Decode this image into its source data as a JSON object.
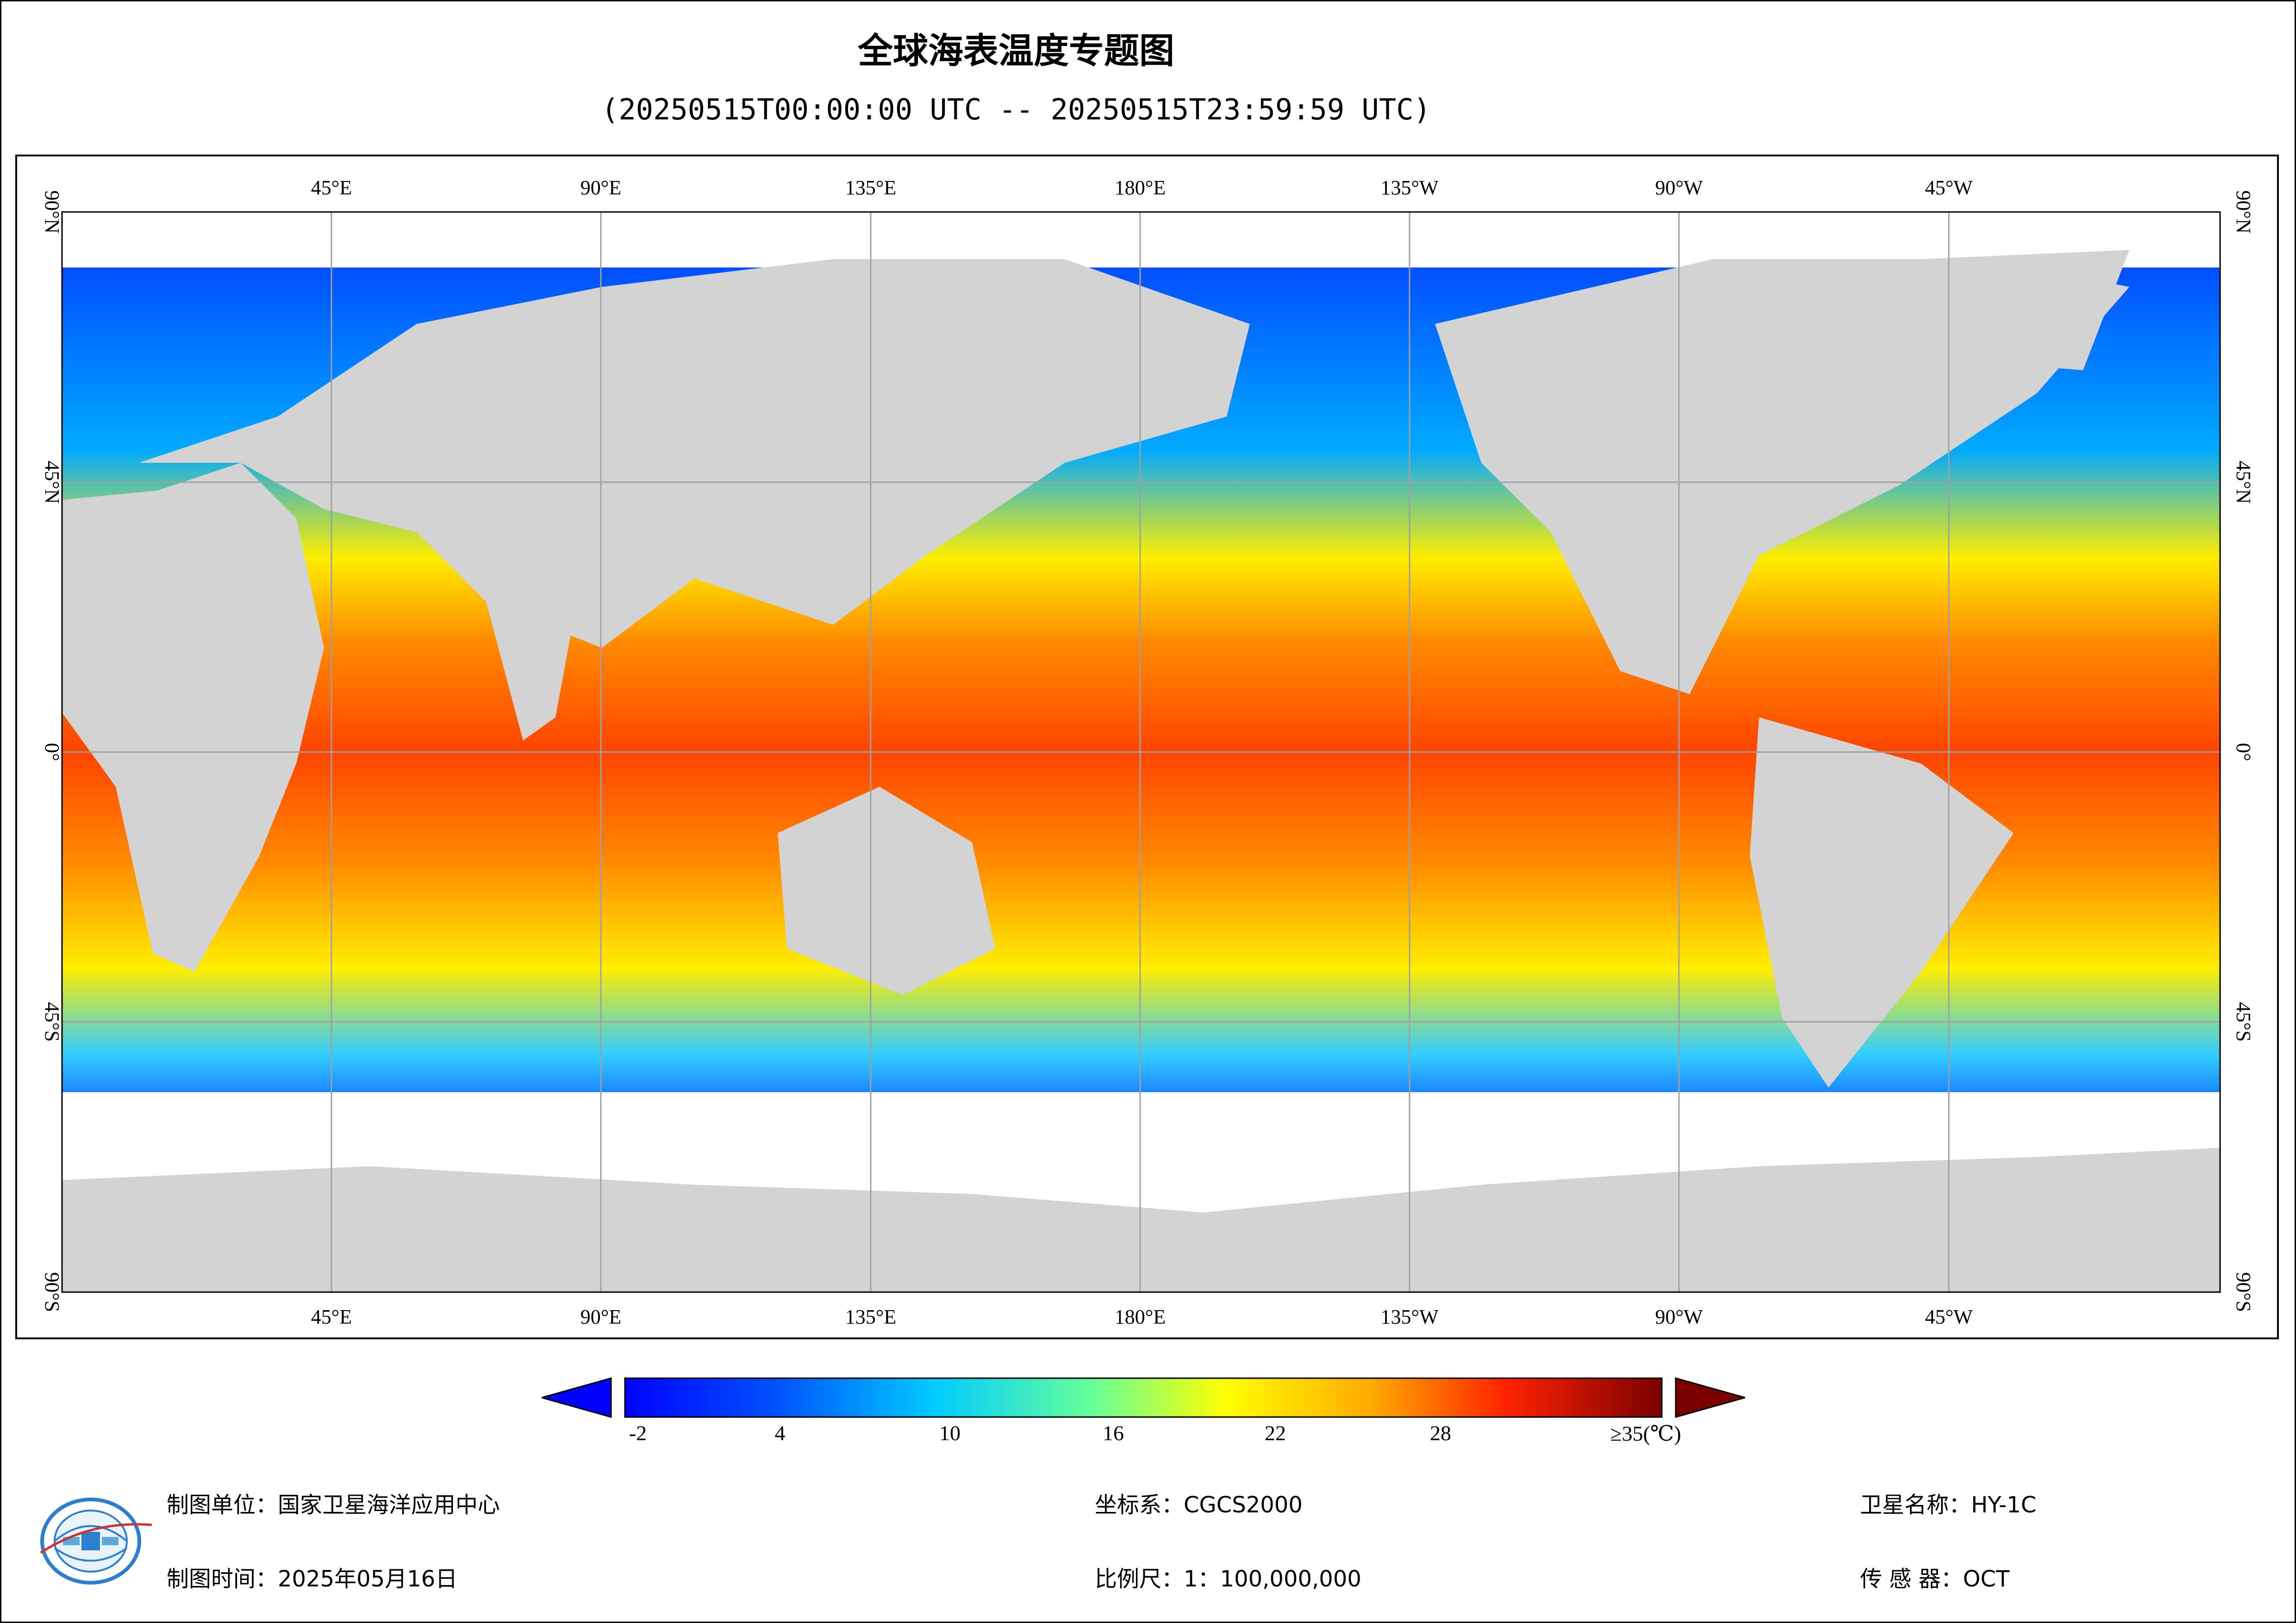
{
  "title": "全球海表温度专题图",
  "subtitle": "(20250515T00:00:00 UTC -- 20250515T23:59:59 UTC)",
  "map": {
    "top_lon_labels": [
      "45°E",
      "90°E",
      "135°E",
      "180°E",
      "135°W",
      "90°W",
      "45°W"
    ],
    "bottom_lon_labels": [
      "45°E",
      "90°E",
      "135°E",
      "180°E",
      "135°W",
      "90°W",
      "45°W"
    ],
    "lat_labels": [
      "90°N",
      "45°N",
      "0°",
      "45°S",
      "90°S"
    ],
    "colors": {
      "land": "#d3d3d3",
      "cloud": "#ffffff",
      "grid": "#a0a0a0"
    }
  },
  "colorbar": {
    "ticks": [
      "-2",
      "4",
      "10",
      "16",
      "22",
      "28",
      "≥35(℃)"
    ],
    "colors": [
      "#0000ff",
      "#0055ff",
      "#00aaff",
      "#00e5e5",
      "#7fff7f",
      "#ffff00",
      "#ffaa00",
      "#ff5500",
      "#ff0000",
      "#7a0000"
    ]
  },
  "footer": {
    "agency_label": "制图单位：国家卫星海洋应用中心",
    "date_label": "制图时间：2025年05月16日",
    "crs_label": "坐标系：CGCS2000",
    "scale_label": "比例尺：1：100,000,000",
    "satellite_label": "卫星名称：HY-1C",
    "sensor_label": "传 感 器：OCT"
  }
}
